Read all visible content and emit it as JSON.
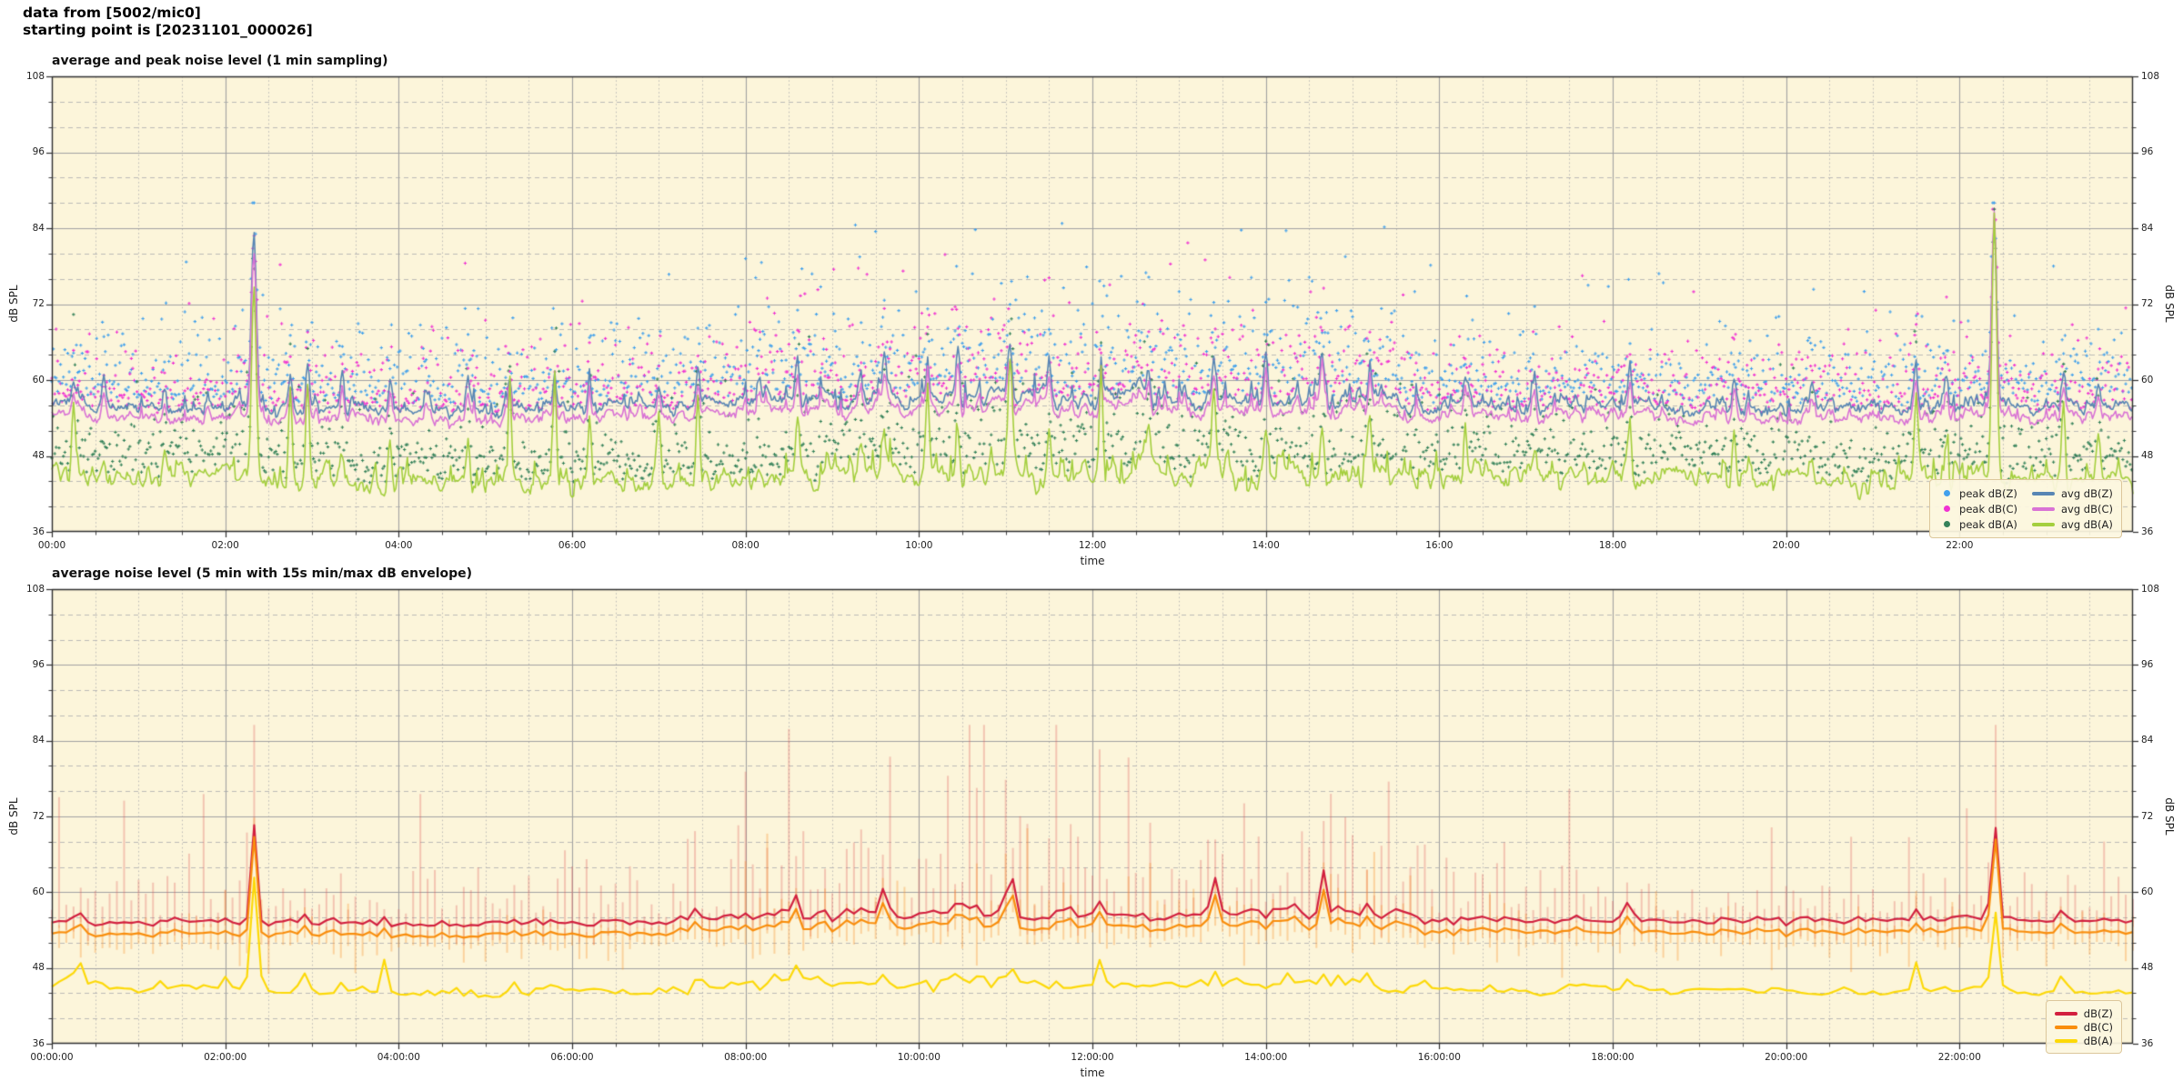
{
  "header": {
    "line1": "data from [5002/mic0]",
    "line2": "starting point is [20231101_000026]"
  },
  "palette": {
    "figure_bg": "#ffffff",
    "axes_bg": "#fcf5da",
    "grid_major": "#a2a2a2",
    "grid_minor": "#b3b3b3",
    "spine": "#2e2e2e",
    "legend_bg": "#fcf6df",
    "legend_border": "#dcc79b"
  },
  "chart_data": [
    {
      "type": "line+scatter",
      "title": "average and peak noise level (1 min sampling)",
      "xlabel": "time",
      "ylabel_left": "dB SPL",
      "ylabel_right": "dB SPL",
      "ylim": [
        36,
        108
      ],
      "yticks": [
        36,
        48,
        60,
        72,
        84,
        96,
        108
      ],
      "y_minor_step_db": 4,
      "x_range_hours": [
        0,
        24
      ],
      "xtick_hours": [
        0,
        2,
        4,
        6,
        8,
        10,
        12,
        14,
        16,
        18,
        20,
        22
      ],
      "xtick_labels": [
        "00:00",
        "02:00",
        "04:00",
        "06:00",
        "08:00",
        "10:00",
        "12:00",
        "14:00",
        "16:00",
        "18:00",
        "20:00",
        "22:00"
      ],
      "x_minor_step_hours": 0.5,
      "grid": true,
      "sampling_minutes": 1,
      "busy_hours": [
        8,
        16
      ],
      "legend": {
        "position": "lower right",
        "entries": [
          {
            "label": "peak dB(Z)",
            "marker": "dot",
            "color": "#41a0ec"
          },
          {
            "label": "peak dB(C)",
            "marker": "dot",
            "color": "#f032d2"
          },
          {
            "label": "peak dB(A)",
            "marker": "dot",
            "color": "#35825a"
          },
          {
            "label": "avg dB(Z)",
            "marker": "line",
            "color": "#5886b4"
          },
          {
            "label": "avg dB(C)",
            "marker": "line",
            "color": "#d973d5"
          },
          {
            "label": "avg dB(A)",
            "marker": "line",
            "color": "#a4cf3e"
          }
        ]
      },
      "series": {
        "avg_dBZ": {
          "label": "avg dB(Z)",
          "color": "#5886b4",
          "baseline_db": 55.5,
          "hourly_anchors": [
            56.5,
            55.6,
            55.6,
            55.4,
            55.3,
            55.2,
            55.5,
            55.8,
            56.2,
            56.8,
            57.0,
            57.4,
            57.0,
            57.1,
            56.8,
            57.0,
            56.0,
            55.8,
            56.0,
            55.6,
            55.5,
            55.6,
            55.8,
            55.6,
            55.5
          ]
        },
        "avg_dBC": {
          "label": "avg dB(C)",
          "color": "#d973d5",
          "baseline_db": 54.0,
          "hourly_anchors": [
            54.8,
            54.0,
            53.9,
            53.8,
            53.7,
            53.6,
            53.9,
            54.2,
            54.6,
            55.2,
            55.4,
            55.8,
            55.4,
            55.5,
            55.2,
            55.4,
            54.5,
            54.2,
            54.4,
            54.0,
            53.9,
            54.0,
            54.2,
            54.0,
            53.9
          ]
        },
        "avg_dBA": {
          "label": "avg dB(A)",
          "color": "#a4cf3e",
          "baseline_db": 44.5,
          "hourly_anchors": [
            45.5,
            44.6,
            44.4,
            44.0,
            43.8,
            43.6,
            44.0,
            44.5,
            45.0,
            45.6,
            45.6,
            46.2,
            45.6,
            45.6,
            45.4,
            45.5,
            45.0,
            44.8,
            45.0,
            44.8,
            44.5,
            44.6,
            44.8,
            44.5,
            44.4
          ]
        },
        "peak_dBZ": {
          "label": "peak dB(Z)",
          "color": "#41a0ec",
          "typical_band_db": [
            57,
            75
          ],
          "day_band_db": [
            58,
            80
          ]
        },
        "peak_dBC": {
          "label": "peak dB(C)",
          "color": "#f032d2",
          "typical_band_db": [
            56,
            72
          ],
          "day_band_db": [
            57,
            78
          ]
        },
        "peak_dBA": {
          "label": "peak dB(A)",
          "color": "#35825a",
          "typical_band_db": [
            45,
            55
          ],
          "day_band_db": [
            46,
            62
          ]
        }
      },
      "events": [
        {
          "t": 0.25,
          "Z": 3,
          "C": 3,
          "A": 12,
          "w": 0.02
        },
        {
          "t": 0.6,
          "Z": 5,
          "C": 4,
          "A": 3,
          "w": 0.02
        },
        {
          "t": 1.3,
          "Z": 4,
          "C": 3,
          "A": 6,
          "w": 0.02
        },
        {
          "t": 2.33,
          "Z": 28,
          "C": 26.5,
          "A": 31.5,
          "w": 0.028
        },
        {
          "t": 2.75,
          "Z": 4,
          "C": 4,
          "A": 14,
          "w": 0.02
        },
        {
          "t": 2.95,
          "Z": 6,
          "C": 5,
          "A": 15,
          "w": 0.02
        },
        {
          "t": 3.35,
          "Z": 5,
          "C": 4,
          "A": 4,
          "w": 0.02
        },
        {
          "t": 3.9,
          "Z": 3,
          "C": 3,
          "A": 8,
          "w": 0.02
        },
        {
          "t": 4.8,
          "Z": 4,
          "C": 3,
          "A": 5,
          "w": 0.02
        },
        {
          "t": 5.28,
          "Z": 5,
          "C": 6,
          "A": 16,
          "w": 0.018
        },
        {
          "t": 5.8,
          "Z": 6,
          "C": 5,
          "A": 17,
          "w": 0.018
        },
        {
          "t": 6.2,
          "Z": 5,
          "C": 4,
          "A": 10,
          "w": 0.02
        },
        {
          "t": 7.0,
          "Z": 4,
          "C": 4,
          "A": 12,
          "w": 0.02
        },
        {
          "t": 7.45,
          "Z": 6,
          "C": 5,
          "A": 13,
          "w": 0.02
        },
        {
          "t": 8.6,
          "Z": 7,
          "C": 6,
          "A": 10,
          "w": 0.022
        },
        {
          "t": 9.6,
          "Z": 8,
          "C": 6,
          "A": 6,
          "w": 0.022
        },
        {
          "t": 10.1,
          "Z": 5,
          "C": 5,
          "A": 12,
          "w": 0.02
        },
        {
          "t": 10.45,
          "Z": 7,
          "C": 6,
          "A": 6,
          "w": 0.02
        },
        {
          "t": 11.05,
          "Z": 9,
          "C": 8,
          "A": 17,
          "w": 0.025
        },
        {
          "t": 11.5,
          "Z": 6,
          "C": 5,
          "A": 8,
          "w": 0.02
        },
        {
          "t": 12.1,
          "Z": 5,
          "C": 5,
          "A": 16,
          "w": 0.02
        },
        {
          "t": 12.65,
          "Z": 6,
          "C": 5,
          "A": 8,
          "w": 0.02
        },
        {
          "t": 13.4,
          "Z": 7,
          "C": 6,
          "A": 12,
          "w": 0.022
        },
        {
          "t": 14.0,
          "Z": 6,
          "C": 5,
          "A": 6,
          "w": 0.02
        },
        {
          "t": 14.65,
          "Z": 9,
          "C": 9,
          "A": 8,
          "w": 0.025
        },
        {
          "t": 15.2,
          "Z": 6,
          "C": 5,
          "A": 10,
          "w": 0.02
        },
        {
          "t": 16.3,
          "Z": 4,
          "C": 4,
          "A": 8,
          "w": 0.02
        },
        {
          "t": 17.1,
          "Z": 5,
          "C": 4,
          "A": 5,
          "w": 0.02
        },
        {
          "t": 18.2,
          "Z": 6,
          "C": 5,
          "A": 11,
          "w": 0.02
        },
        {
          "t": 19.4,
          "Z": 4,
          "C": 4,
          "A": 9,
          "w": 0.02
        },
        {
          "t": 20.3,
          "Z": 4,
          "C": 3,
          "A": 5,
          "w": 0.02
        },
        {
          "t": 21.5,
          "Z": 5,
          "C": 4,
          "A": 13,
          "w": 0.02
        },
        {
          "t": 21.85,
          "Z": 6,
          "C": 5,
          "A": 6,
          "w": 0.02
        },
        {
          "t": 22.4,
          "Z": 29,
          "C": 32,
          "A": 40.5,
          "w": 0.028
        },
        {
          "t": 23.2,
          "Z": 6,
          "C": 5,
          "A": 12,
          "w": 0.02
        },
        {
          "t": 23.6,
          "Z": 4,
          "C": 4,
          "A": 8,
          "w": 0.02
        }
      ]
    },
    {
      "type": "line+envelope",
      "title": "average noise level (5 min with 15s min/max dB envelope)",
      "xlabel": "time",
      "ylabel_left": "dB SPL",
      "ylabel_right": "dB SPL",
      "ylim": [
        36,
        108
      ],
      "yticks": [
        36,
        48,
        60,
        72,
        84,
        96,
        108
      ],
      "y_minor_step_db": 4,
      "x_range_hours": [
        0,
        24
      ],
      "xtick_hours": [
        0,
        2,
        4,
        6,
        8,
        10,
        12,
        14,
        16,
        18,
        20,
        22
      ],
      "xtick_labels": [
        "00:00:00",
        "02:00:00",
        "04:00:00",
        "06:00:00",
        "08:00:00",
        "10:00:00",
        "12:00:00",
        "14:00:00",
        "16:00:00",
        "18:00:00",
        "20:00:00",
        "22:00:00"
      ],
      "x_minor_step_hours": 0.5,
      "grid": true,
      "sampling_minutes": 5,
      "busy_hours": [
        8,
        16
      ],
      "legend": {
        "position": "lower right",
        "entries": [
          {
            "label": "dB(Z)",
            "marker": "line",
            "color": "#d2203f"
          },
          {
            "label": "dB(C)",
            "marker": "line",
            "color": "#f98e0d"
          },
          {
            "label": "dB(A)",
            "marker": "line",
            "color": "#fdd908"
          }
        ]
      },
      "series": {
        "dBZ": {
          "label": "dB(Z)",
          "color": "#d2203f",
          "baseline_db": 55.3,
          "hourly_anchors": [
            55.8,
            55.2,
            55.2,
            55.0,
            54.9,
            54.8,
            55.0,
            55.3,
            55.8,
            56.3,
            56.5,
            57.0,
            56.5,
            56.7,
            56.5,
            56.5,
            55.8,
            55.5,
            55.7,
            55.4,
            55.3,
            55.4,
            55.6,
            55.4,
            55.3
          ]
        },
        "dBC": {
          "label": "dB(C)",
          "color": "#f98e0d",
          "baseline_db": 53.5,
          "hourly_anchors": [
            54.0,
            53.4,
            53.3,
            53.2,
            53.1,
            53.0,
            53.2,
            53.5,
            54.0,
            54.6,
            54.8,
            55.2,
            54.8,
            54.9,
            54.7,
            54.7,
            54.0,
            53.8,
            53.9,
            53.6,
            53.5,
            53.6,
            53.8,
            53.6,
            53.5
          ]
        },
        "dBA": {
          "label": "dB(A)",
          "color": "#fdd908",
          "baseline_db": 44.5,
          "hourly_anchors": [
            45.8,
            44.6,
            44.5,
            44.2,
            44.0,
            43.8,
            44.1,
            44.4,
            44.9,
            45.3,
            45.3,
            45.8,
            45.3,
            45.3,
            45.1,
            45.2,
            44.8,
            44.6,
            44.8,
            44.6,
            44.3,
            44.4,
            44.6,
            44.4,
            44.3
          ]
        }
      },
      "envelope": {
        "dBZ_minmax_color": "rgba(222,85,85,0.30)",
        "dBC_minmax_color": "rgba(250,150,50,0.36)",
        "night_mean_db": 4,
        "day_mean_db": 9,
        "max_db": 86.5,
        "min_drop_db": 3,
        "event_tops": [
          {
            "t": 2.33,
            "a": 14
          },
          {
            "t": 22.4,
            "a": 15
          }
        ]
      },
      "events": [
        {
          "t": 0.3,
          "Z": 2,
          "C": 2,
          "A": 6,
          "w": 0.03
        },
        {
          "t": 2.33,
          "Z": 15.5,
          "C": 15.5,
          "A": 17,
          "w": 0.035
        },
        {
          "t": 2.95,
          "Z": 3,
          "C": 3,
          "A": 3,
          "w": 0.03
        },
        {
          "t": 3.85,
          "Z": 1.5,
          "C": 1.5,
          "A": 6,
          "w": 0.03
        },
        {
          "t": 5.3,
          "Z": 2,
          "C": 2,
          "A": 3,
          "w": 0.03
        },
        {
          "t": 7.45,
          "Z": 3,
          "C": 2.5,
          "A": 3,
          "w": 0.03
        },
        {
          "t": 8.6,
          "Z": 4,
          "C": 3.5,
          "A": 3,
          "w": 0.03
        },
        {
          "t": 9.6,
          "Z": 3.5,
          "C": 3,
          "A": 2,
          "w": 0.03
        },
        {
          "t": 10.45,
          "Z": 3,
          "C": 3,
          "A": 2,
          "w": 0.03
        },
        {
          "t": 11.05,
          "Z": 9.5,
          "C": 8,
          "A": 4,
          "w": 0.03
        },
        {
          "t": 12.1,
          "Z": 3,
          "C": 3,
          "A": 4,
          "w": 0.03
        },
        {
          "t": 13.4,
          "Z": 6,
          "C": 5,
          "A": 3,
          "w": 0.032
        },
        {
          "t": 14.65,
          "Z": 8.5,
          "C": 7,
          "A": 3,
          "w": 0.032
        },
        {
          "t": 15.2,
          "Z": 4,
          "C": 3.5,
          "A": 3,
          "w": 0.03
        },
        {
          "t": 18.2,
          "Z": 3,
          "C": 2.5,
          "A": 3,
          "w": 0.03
        },
        {
          "t": 21.5,
          "Z": 2.5,
          "C": 2,
          "A": 4,
          "w": 0.03
        },
        {
          "t": 22.4,
          "Z": 16,
          "C": 16,
          "A": 13,
          "w": 0.035
        },
        {
          "t": 23.2,
          "Z": 3,
          "C": 2.5,
          "A": 4,
          "w": 0.03
        }
      ]
    }
  ]
}
